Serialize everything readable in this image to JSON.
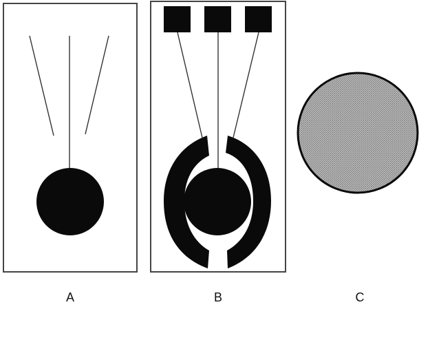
{
  "panels": [
    {
      "label": "A"
    },
    {
      "label": "B"
    },
    {
      "label": "C"
    }
  ],
  "colors": {
    "ink": "#0a0a0a",
    "frame": "#444444",
    "wire": "#333333",
    "disc_fill": "#9a9a9a",
    "background": "#ffffff"
  }
}
